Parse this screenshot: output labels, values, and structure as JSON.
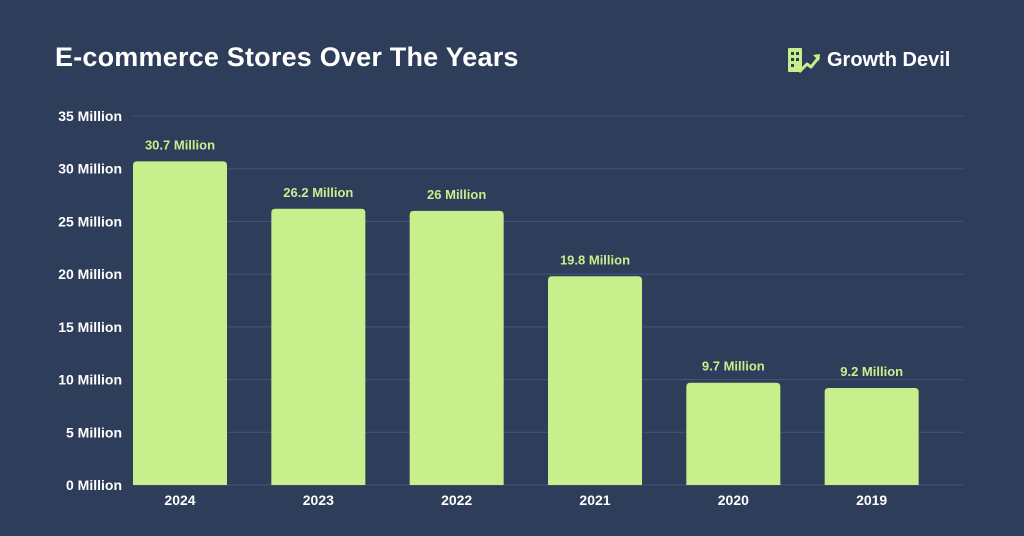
{
  "brand": {
    "name": "Growth Devil",
    "icon": "growth-devil-logo-icon",
    "accent": "#c7f08c"
  },
  "colors": {
    "background": "#2e3d5a",
    "bar": "#c7f08c",
    "grid": "#44557a",
    "text": "#ffffff"
  },
  "chart_data": {
    "type": "bar",
    "title": "E-commerce Stores Over The Years",
    "xlabel": "",
    "ylabel": "",
    "unit": "Million",
    "categories": [
      "2024",
      "2023",
      "2022",
      "2021",
      "2020",
      "2019"
    ],
    "values": [
      30.7,
      26.2,
      26,
      19.8,
      9.7,
      9.2
    ],
    "data_labels": [
      "30.7 Million",
      "26.2 Million",
      "26 Million",
      "19.8 Million",
      "9.7 Million",
      "9.2 Million"
    ],
    "ylim": [
      0,
      35
    ],
    "yticks": [
      0,
      5,
      10,
      15,
      20,
      25,
      30,
      35
    ],
    "ytick_labels": [
      "0 Million",
      "5 Million",
      "10 Million",
      "15 Million",
      "20 Million",
      "25 Million",
      "30 Million",
      "35 Million"
    ],
    "grid": true,
    "legend": "none"
  }
}
